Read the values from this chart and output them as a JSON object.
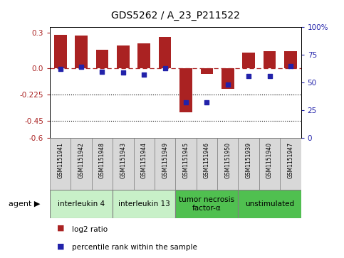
{
  "title": "GDS5262 / A_23_P211522",
  "samples": [
    "GSM1151941",
    "GSM1151942",
    "GSM1151948",
    "GSM1151943",
    "GSM1151944",
    "GSM1151949",
    "GSM1151945",
    "GSM1151946",
    "GSM1151950",
    "GSM1151939",
    "GSM1151940",
    "GSM1151947"
  ],
  "log2_ratio": [
    0.285,
    0.278,
    0.155,
    0.19,
    0.21,
    0.265,
    -0.38,
    -0.05,
    -0.18,
    0.13,
    0.145,
    0.145
  ],
  "percentile_rank": [
    62,
    64,
    60,
    59,
    57,
    63,
    32,
    32,
    48,
    56,
    56,
    65
  ],
  "groups": [
    {
      "label": "interleukin 4",
      "start": 0,
      "end": 2,
      "color": "#c8f0c8"
    },
    {
      "label": "interleukin 13",
      "start": 3,
      "end": 5,
      "color": "#c8f0c8"
    },
    {
      "label": "tumor necrosis\nfactor-α",
      "start": 6,
      "end": 8,
      "color": "#50c050"
    },
    {
      "label": "unstimulated",
      "start": 9,
      "end": 11,
      "color": "#50c050"
    }
  ],
  "bar_color": "#aa2222",
  "dot_color": "#2222aa",
  "ylim_left": [
    -0.6,
    0.35
  ],
  "yticks_left": [
    -0.6,
    -0.45,
    -0.225,
    0.0,
    0.3
  ],
  "yticks_right": [
    0,
    25,
    50,
    75,
    100
  ],
  "hline_y": 0.0,
  "dotted_lines": [
    -0.225,
    -0.45
  ],
  "background_color": "#ffffff",
  "bar_width": 0.6,
  "sample_box_color": "#d8d8d8",
  "sample_font_size": 5.5,
  "group_font_size": 7.5,
  "title_fontsize": 10
}
